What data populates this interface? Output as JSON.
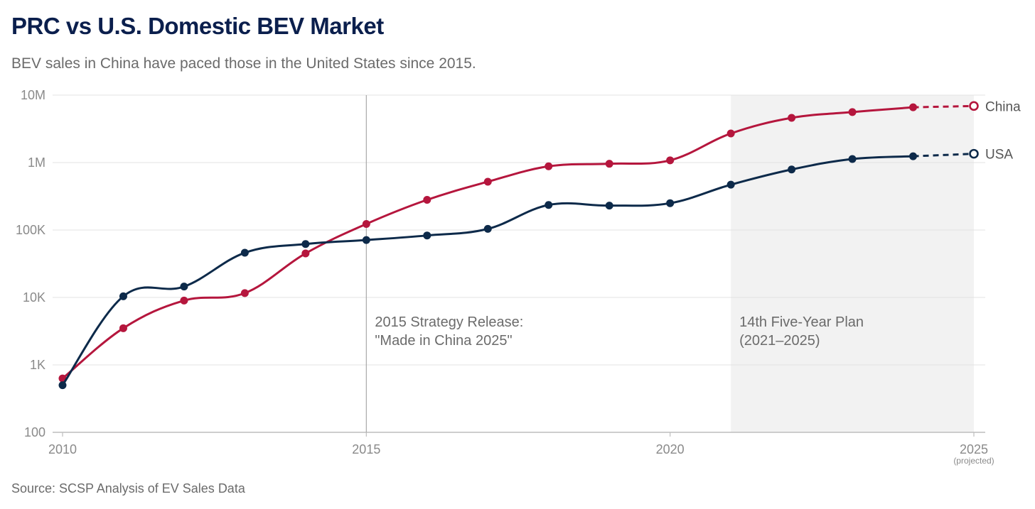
{
  "header": {
    "title": "PRC vs U.S. Domestic BEV Market",
    "subtitle": "BEV sales in China have paced those in the United States since 2015."
  },
  "footer": {
    "source": "Source: SCSP Analysis of EV Sales Data"
  },
  "chart_data": {
    "type": "line",
    "title": "PRC vs U.S. Domestic BEV Market",
    "subtitle": "BEV sales in China have paced those in the United States since 2015.",
    "xlabel": "",
    "ylabel": "",
    "yscale": "log",
    "xlim": [
      2010,
      2025
    ],
    "ylim": [
      100,
      10000000
    ],
    "x_ticks": [
      {
        "value": 2010,
        "label": "2010"
      },
      {
        "value": 2015,
        "label": "2015"
      },
      {
        "value": 2020,
        "label": "2020"
      },
      {
        "value": 2025,
        "label": "2025",
        "sublabel": "(projected)"
      }
    ],
    "y_ticks": [
      {
        "value": 100,
        "label": "100"
      },
      {
        "value": 1000,
        "label": "1K"
      },
      {
        "value": 10000,
        "label": "10K"
      },
      {
        "value": 100000,
        "label": "100K"
      },
      {
        "value": 1000000,
        "label": "1M"
      },
      {
        "value": 10000000,
        "label": "10M"
      }
    ],
    "grid": true,
    "series": [
      {
        "name": "China",
        "color": "#b5163d",
        "x": [
          2010,
          2011,
          2012,
          2013,
          2014,
          2015,
          2016,
          2017,
          2018,
          2019,
          2020,
          2021,
          2022,
          2023,
          2024
        ],
        "values": [
          630,
          3500,
          9000,
          11600,
          45000,
          123000,
          280000,
          520000,
          880000,
          960000,
          1080000,
          2700000,
          4600000,
          5600000,
          6600000
        ],
        "projected": {
          "x": 2025,
          "value": 6900000
        }
      },
      {
        "name": "USA",
        "color": "#0d2a4a",
        "x": [
          2010,
          2011,
          2012,
          2013,
          2014,
          2015,
          2016,
          2017,
          2018,
          2019,
          2020,
          2021,
          2022,
          2023,
          2024
        ],
        "values": [
          500,
          10400,
          14500,
          46000,
          62000,
          71000,
          83000,
          104000,
          235000,
          230000,
          250000,
          470000,
          790000,
          1130000,
          1240000
        ],
        "projected": {
          "x": 2025,
          "value": 1350000
        }
      }
    ],
    "annotations": [
      {
        "type": "vline",
        "x": 2015,
        "lines": [
          "2015 Strategy Release:",
          "\"Made in China 2025\""
        ]
      },
      {
        "type": "shade",
        "x_start": 2021,
        "x_end": 2025,
        "lines": [
          "14th Five-Year Plan",
          "(2021–2025)"
        ]
      }
    ],
    "colors": {
      "shade": "#f2f2f2",
      "grid": "#e3e3e3",
      "axis": "#bdbdbd",
      "vline": "#a8a8a8"
    }
  }
}
